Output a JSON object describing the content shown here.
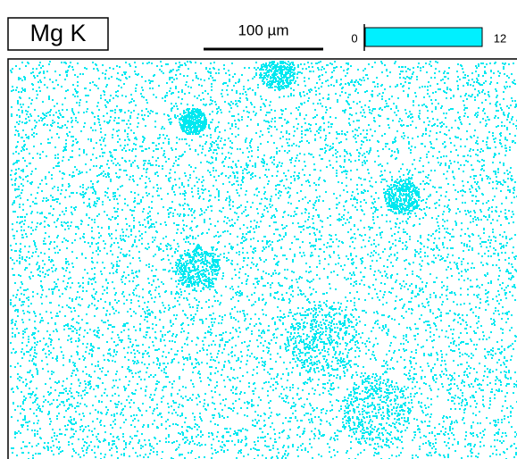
{
  "label": "Mg K",
  "scale_bar": {
    "label": "100 µm"
  },
  "color_bar": {
    "min_label": "0",
    "max_label": "12"
  }
}
